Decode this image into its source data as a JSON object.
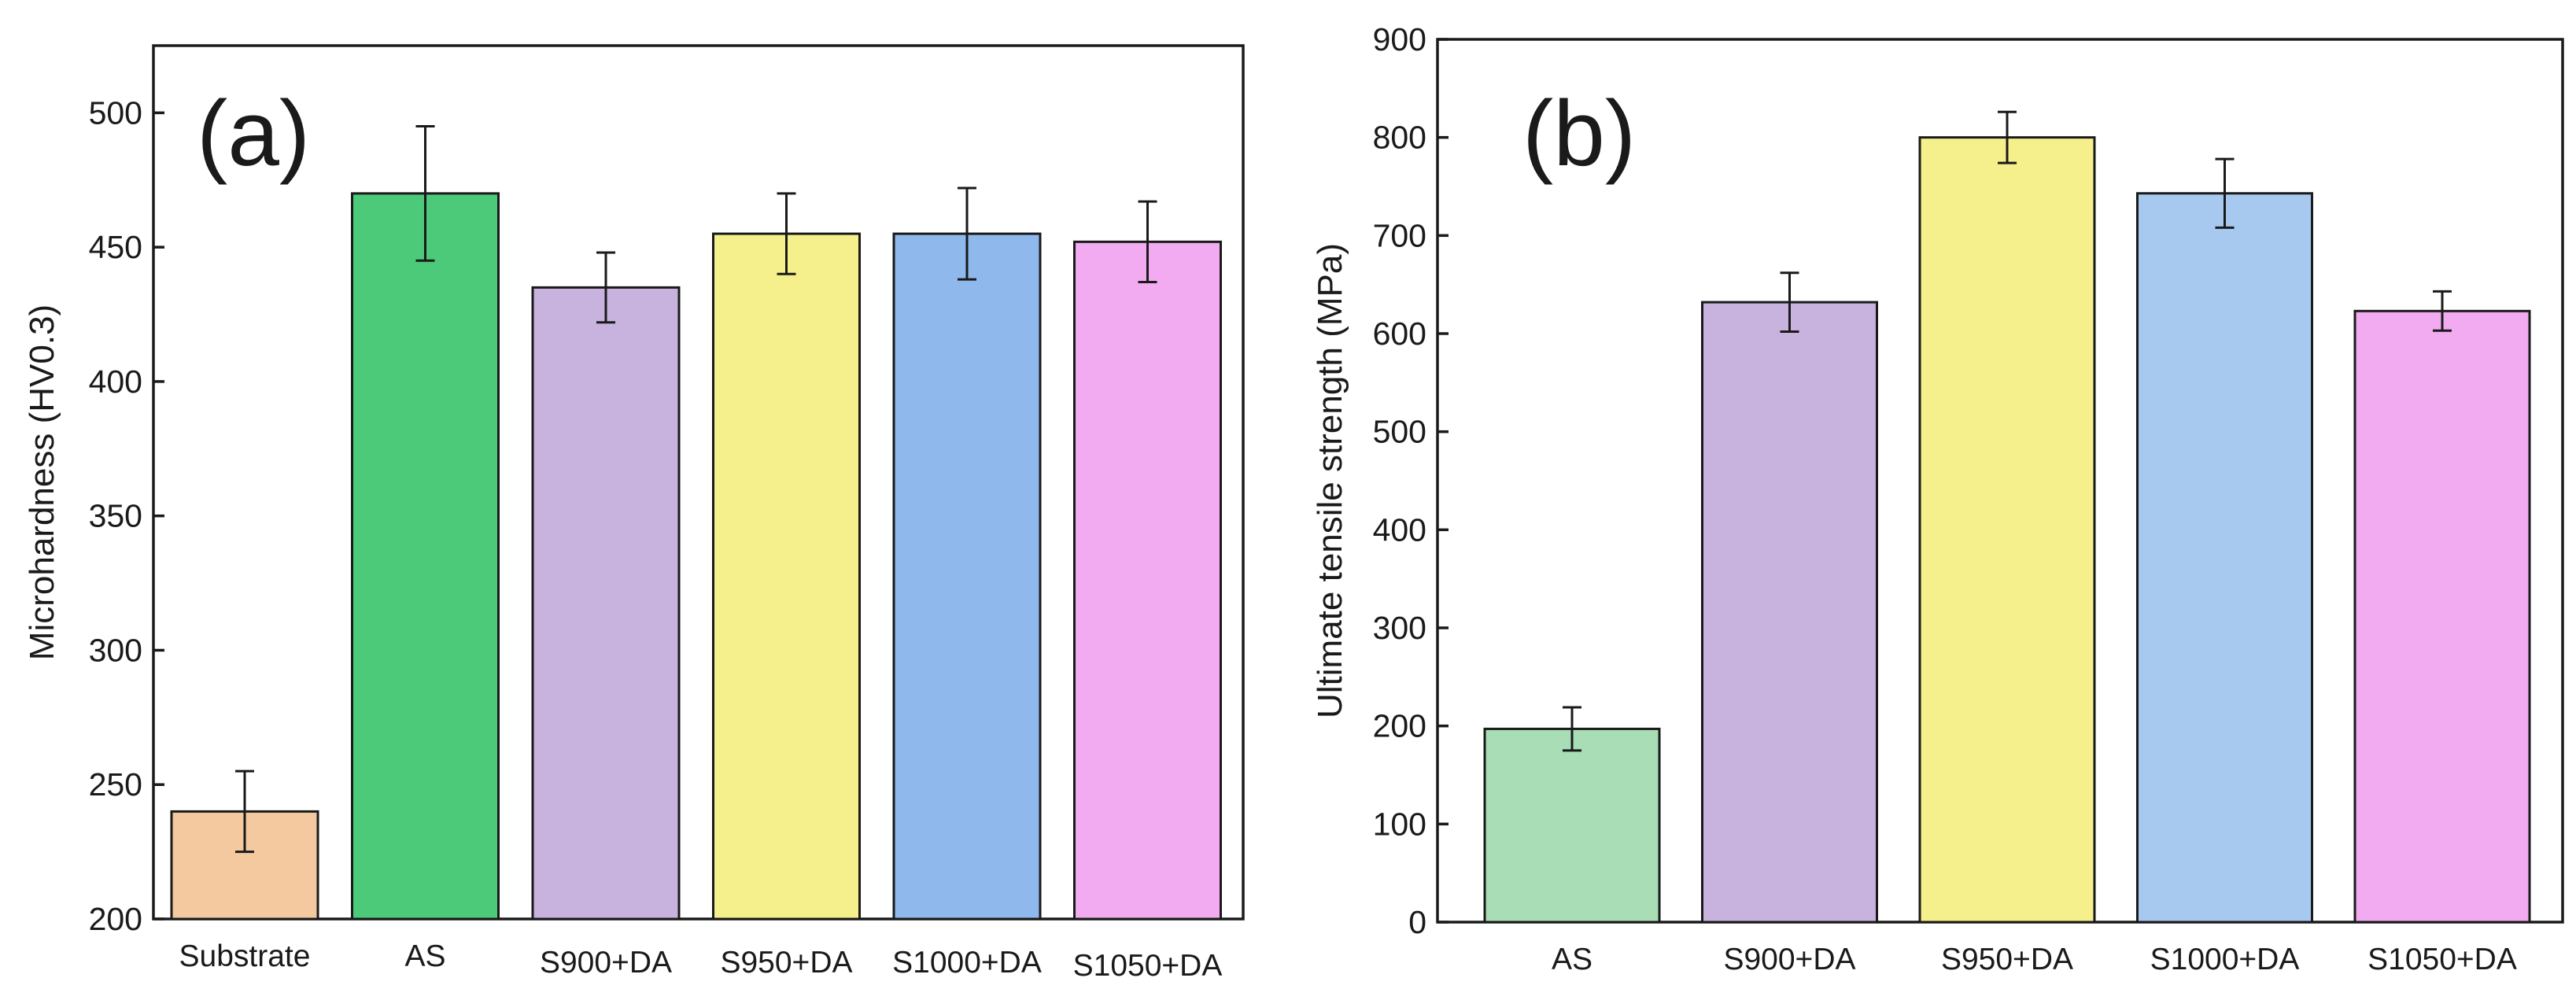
{
  "chart_data": [
    {
      "id": "a",
      "type": "bar",
      "panel_label": "(a)",
      "title": "",
      "xlabel": "",
      "ylabel": "Microhardness (HV0.3)",
      "ylim": [
        200,
        525
      ],
      "yticks": [
        200,
        250,
        300,
        350,
        400,
        450,
        500
      ],
      "grid": false,
      "categories": [
        "Substrate",
        "AS",
        "S900+DA",
        "S950+DA",
        "S1000+DA",
        "S1050+DA"
      ],
      "values": [
        240,
        470,
        435,
        455,
        455,
        452
      ],
      "errors": [
        15,
        25,
        13,
        15,
        17,
        15
      ],
      "colors": [
        "#f5c9a0",
        "#4dc97a",
        "#c7b3dd",
        "#f6f08c",
        "#8fb8ec",
        "#f2aaf0"
      ],
      "hatch": "diagonal"
    },
    {
      "id": "b",
      "type": "bar",
      "panel_label": "(b)",
      "title": "",
      "xlabel": "",
      "ylabel": "Ultimate tensile strength (MPa)",
      "ylim": [
        0,
        900
      ],
      "yticks": [
        0,
        100,
        200,
        300,
        400,
        500,
        600,
        700,
        800,
        900
      ],
      "grid": false,
      "categories": [
        "AS",
        "S900+DA",
        "S950+DA",
        "S1000+DA",
        "S1050+DA"
      ],
      "values": [
        197,
        632,
        800,
        743,
        623
      ],
      "errors": [
        22,
        30,
        26,
        35,
        20
      ],
      "colors": [
        "#a8ddb5",
        "#c7b3dd",
        "#f6f08c",
        "#a7c8ef",
        "#f2aaf0"
      ],
      "hatch": "diagonal"
    }
  ]
}
